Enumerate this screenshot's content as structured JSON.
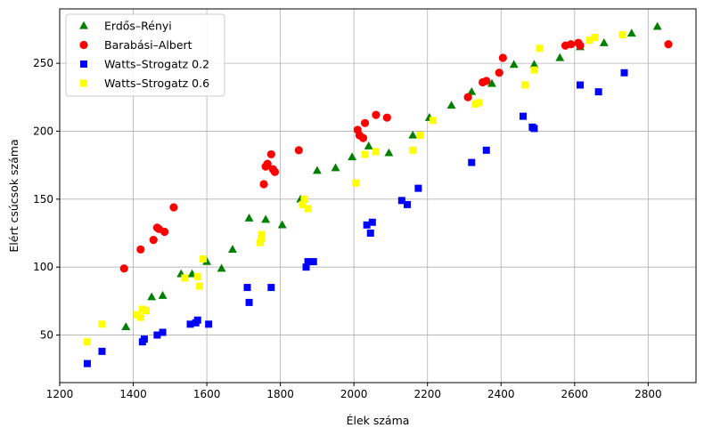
{
  "chart_data": {
    "type": "scatter",
    "title": "",
    "xlabel": "Élek száma",
    "ylabel": "Elért csúcsok száma",
    "xlim": [
      1200,
      2930
    ],
    "ylim": [
      15,
      290
    ],
    "xticks": [
      1200,
      1400,
      1600,
      1800,
      2000,
      2200,
      2400,
      2600,
      2800
    ],
    "yticks": [
      50,
      100,
      150,
      200,
      250
    ],
    "grid": true,
    "legend_position": "upper-left",
    "series": [
      {
        "name": "Erdős–Rényi",
        "marker": "triangle",
        "color": "#008000",
        "points": [
          [
            1380,
            56
          ],
          [
            1450,
            78
          ],
          [
            1480,
            79
          ],
          [
            1530,
            95
          ],
          [
            1560,
            95
          ],
          [
            1600,
            104
          ],
          [
            1640,
            99
          ],
          [
            1670,
            113
          ],
          [
            1715,
            136
          ],
          [
            1760,
            135
          ],
          [
            1805,
            131
          ],
          [
            1855,
            150
          ],
          [
            1900,
            171
          ],
          [
            1950,
            173
          ],
          [
            1995,
            181
          ],
          [
            2040,
            189
          ],
          [
            2095,
            184
          ],
          [
            2160,
            197
          ],
          [
            2205,
            210
          ],
          [
            2265,
            219
          ],
          [
            2320,
            229
          ],
          [
            2375,
            235
          ],
          [
            2435,
            249
          ],
          [
            2490,
            249
          ],
          [
            2560,
            254
          ],
          [
            2615,
            262
          ],
          [
            2680,
            265
          ],
          [
            2755,
            272
          ],
          [
            2825,
            277
          ]
        ]
      },
      {
        "name": "Barabási–Albert",
        "marker": "circle",
        "color": "#ff0000",
        "points": [
          [
            1375,
            99
          ],
          [
            1420,
            113
          ],
          [
            1455,
            120
          ],
          [
            1465,
            129
          ],
          [
            1470,
            128
          ],
          [
            1485,
            126
          ],
          [
            1510,
            144
          ],
          [
            1755,
            161
          ],
          [
            1760,
            174
          ],
          [
            1765,
            176
          ],
          [
            1775,
            183
          ],
          [
            1780,
            172
          ],
          [
            1785,
            170
          ],
          [
            1850,
            186
          ],
          [
            2010,
            201
          ],
          [
            2015,
            197
          ],
          [
            2025,
            195
          ],
          [
            2030,
            206
          ],
          [
            2060,
            212
          ],
          [
            2090,
            210
          ],
          [
            2310,
            225
          ],
          [
            2350,
            236
          ],
          [
            2360,
            237
          ],
          [
            2395,
            243
          ],
          [
            2405,
            254
          ],
          [
            2575,
            263
          ],
          [
            2590,
            264
          ],
          [
            2610,
            265
          ],
          [
            2615,
            263
          ],
          [
            2855,
            264
          ]
        ]
      },
      {
        "name": "Watts–Strogatz 0.2",
        "marker": "square",
        "color": "#0000ff",
        "points": [
          [
            1275,
            29
          ],
          [
            1315,
            38
          ],
          [
            1425,
            45
          ],
          [
            1430,
            47
          ],
          [
            1465,
            50
          ],
          [
            1480,
            52
          ],
          [
            1555,
            58
          ],
          [
            1570,
            59
          ],
          [
            1575,
            61
          ],
          [
            1605,
            58
          ],
          [
            1710,
            85
          ],
          [
            1715,
            74
          ],
          [
            1775,
            85
          ],
          [
            1870,
            100
          ],
          [
            1875,
            104
          ],
          [
            1890,
            104
          ],
          [
            2035,
            131
          ],
          [
            2045,
            125
          ],
          [
            2050,
            133
          ],
          [
            2130,
            149
          ],
          [
            2145,
            146
          ],
          [
            2175,
            158
          ],
          [
            2320,
            177
          ],
          [
            2360,
            186
          ],
          [
            2460,
            211
          ],
          [
            2485,
            203
          ],
          [
            2490,
            202
          ],
          [
            2615,
            234
          ],
          [
            2665,
            229
          ],
          [
            2735,
            243
          ]
        ]
      },
      {
        "name": "Watts–Strogatz 0.6",
        "marker": "square",
        "color": "#ffff00",
        "points": [
          [
            1275,
            45
          ],
          [
            1315,
            58
          ],
          [
            1410,
            65
          ],
          [
            1420,
            63
          ],
          [
            1425,
            69
          ],
          [
            1435,
            68
          ],
          [
            1540,
            92
          ],
          [
            1575,
            93
          ],
          [
            1580,
            86
          ],
          [
            1590,
            106
          ],
          [
            1745,
            118
          ],
          [
            1748,
            121
          ],
          [
            1750,
            124
          ],
          [
            1860,
            146
          ],
          [
            1865,
            150
          ],
          [
            1875,
            143
          ],
          [
            2005,
            162
          ],
          [
            2030,
            183
          ],
          [
            2060,
            185
          ],
          [
            2160,
            186
          ],
          [
            2180,
            197
          ],
          [
            2215,
            208
          ],
          [
            2330,
            220
          ],
          [
            2340,
            221
          ],
          [
            2465,
            234
          ],
          [
            2490,
            245
          ],
          [
            2505,
            261
          ],
          [
            2640,
            267
          ],
          [
            2655,
            269
          ],
          [
            2730,
            271
          ]
        ]
      }
    ]
  }
}
